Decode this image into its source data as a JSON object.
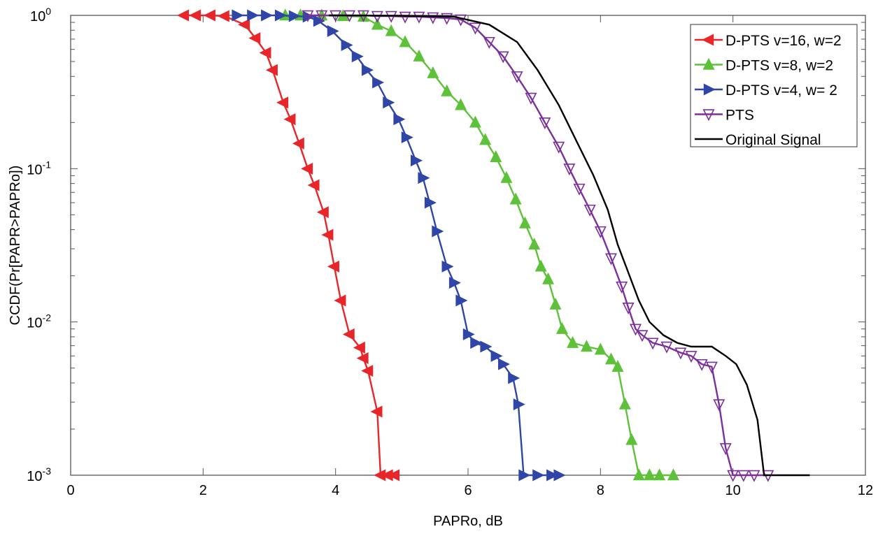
{
  "chart_data": {
    "type": "line",
    "title": "",
    "xlabel": "PAPRo, dB",
    "ylabel": "CCDF(Pr[PAPR>PAPRo])",
    "xlim": [
      0,
      12
    ],
    "ylim": [
      0.001,
      1
    ],
    "yscale": "log",
    "grid": false,
    "legend_position": "top-right",
    "x_ticks": [
      "0",
      "2",
      "4",
      "6",
      "8",
      "10",
      "12"
    ],
    "y_ticks": [
      {
        "base": "10",
        "exp": "0"
      },
      {
        "base": "10",
        "exp": "-1"
      },
      {
        "base": "10",
        "exp": "-2"
      },
      {
        "base": "10",
        "exp": "-3"
      }
    ],
    "series": [
      {
        "name": "D-PTS v=16, w=2",
        "color": "#e8262a",
        "marker": "triangle-left",
        "x": [
          1.71,
          1.89,
          2.11,
          2.32,
          2.63,
          2.79,
          2.95,
          3.05,
          3.21,
          3.32,
          3.45,
          3.58,
          3.68,
          3.82,
          3.89,
          3.98,
          4.08,
          4.21,
          4.37,
          4.42,
          4.49,
          4.63,
          4.68,
          4.79,
          4.89
        ],
        "y": [
          1,
          1,
          1,
          0.99,
          0.87,
          0.71,
          0.57,
          0.44,
          0.27,
          0.21,
          0.146,
          0.1,
          0.078,
          0.052,
          0.037,
          0.023,
          0.0138,
          0.0083,
          0.0068,
          0.0058,
          0.0048,
          0.0026,
          0.001,
          0.001,
          0.001
        ]
      },
      {
        "name": "D-PTS v=8, w=2",
        "color": "#5ec13a",
        "marker": "triangle-up",
        "x": [
          3.24,
          3.47,
          3.79,
          4.11,
          4.42,
          4.63,
          4.84,
          5.05,
          5.26,
          5.47,
          5.68,
          5.89,
          6.11,
          6.26,
          6.42,
          6.58,
          6.72,
          6.86,
          7.0,
          7.1,
          7.21,
          7.32,
          7.42,
          7.58,
          7.79,
          8.0,
          8.16,
          8.26,
          8.37,
          8.47,
          8.58,
          8.74,
          8.89,
          9.1
        ],
        "y": [
          1,
          1,
          1,
          0.99,
          0.98,
          0.87,
          0.79,
          0.67,
          0.54,
          0.42,
          0.32,
          0.26,
          0.2,
          0.154,
          0.119,
          0.087,
          0.063,
          0.044,
          0.032,
          0.023,
          0.019,
          0.013,
          0.009,
          0.0073,
          0.0069,
          0.0066,
          0.0057,
          0.0051,
          0.0029,
          0.0017,
          0.001,
          0.001,
          0.001,
          0.001
        ]
      },
      {
        "name": "D-PTS v=4, w= 2",
        "color": "#2f46a8",
        "marker": "triangle-right",
        "x": [
          2.51,
          2.74,
          2.95,
          3.16,
          3.37,
          3.58,
          3.74,
          3.95,
          4.16,
          4.32,
          4.47,
          4.63,
          4.79,
          4.95,
          5.07,
          5.21,
          5.32,
          5.42,
          5.53,
          5.68,
          5.79,
          5.89,
          6.0,
          6.11,
          6.26,
          6.42,
          6.53,
          6.68,
          6.76,
          6.84,
          7.05,
          7.26,
          7.37
        ],
        "y": [
          1,
          1,
          1,
          1,
          0.99,
          0.98,
          0.92,
          0.79,
          0.64,
          0.54,
          0.44,
          0.365,
          0.27,
          0.21,
          0.16,
          0.113,
          0.087,
          0.06,
          0.039,
          0.023,
          0.018,
          0.0138,
          0.0083,
          0.0073,
          0.0069,
          0.006,
          0.0053,
          0.0043,
          0.0029,
          0.001,
          0.001,
          0.001,
          0.001
        ]
      },
      {
        "name": "PTS",
        "color": "#7b2f9a",
        "marker": "triangle-down",
        "x": [
          3.58,
          3.79,
          4.0,
          4.21,
          4.42,
          4.63,
          4.84,
          5.05,
          5.26,
          5.47,
          5.68,
          5.89,
          6.11,
          6.32,
          6.53,
          6.74,
          6.95,
          7.16,
          7.37,
          7.53,
          7.68,
          7.84,
          8.0,
          8.16,
          8.32,
          8.42,
          8.53,
          8.63,
          8.79,
          9.0,
          9.21,
          9.37,
          9.53,
          9.68,
          9.79,
          9.89,
          10.0,
          10.16,
          10.32,
          10.53
        ],
        "y": [
          1,
          1,
          1,
          1,
          1,
          0.99,
          0.99,
          0.98,
          0.98,
          0.97,
          0.96,
          0.94,
          0.83,
          0.67,
          0.54,
          0.4,
          0.29,
          0.2,
          0.139,
          0.1,
          0.074,
          0.054,
          0.039,
          0.026,
          0.017,
          0.0124,
          0.009,
          0.0082,
          0.0073,
          0.0069,
          0.0063,
          0.006,
          0.0053,
          0.0051,
          0.0029,
          0.0015,
          0.001,
          0.001,
          0.001,
          0.001
        ]
      },
      {
        "name": "Original Signal",
        "color": "#000000",
        "marker": "none",
        "x": [
          3.9,
          5.0,
          5.79,
          6.32,
          6.74,
          7.05,
          7.37,
          7.68,
          7.89,
          8.11,
          8.26,
          8.42,
          8.58,
          8.74,
          8.95,
          9.16,
          9.37,
          9.68,
          9.89,
          10.05,
          10.21,
          10.37,
          10.47,
          11.16
        ],
        "y": [
          1,
          0.995,
          0.98,
          0.87,
          0.67,
          0.44,
          0.26,
          0.139,
          0.091,
          0.054,
          0.032,
          0.021,
          0.0138,
          0.01,
          0.0082,
          0.0073,
          0.0069,
          0.0069,
          0.006,
          0.0053,
          0.0039,
          0.0023,
          0.001,
          0.001
        ]
      }
    ]
  }
}
